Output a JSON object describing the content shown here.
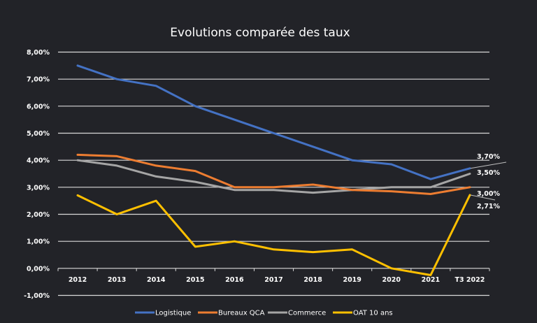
{
  "chart_data": {
    "type": "line",
    "title": "Evolutions comparée des taux",
    "xlabel": "",
    "ylabel": "",
    "categories": [
      "2012",
      "2013",
      "2014",
      "2015",
      "2016",
      "2017",
      "2018",
      "2019",
      "2020",
      "2021",
      "T3 2022"
    ],
    "ylim": [
      -0.01,
      0.08
    ],
    "yticks": [
      {
        "value": 0.08,
        "label": "8,00%"
      },
      {
        "value": 0.07,
        "label": "7,00%"
      },
      {
        "value": 0.06,
        "label": "6,00%"
      },
      {
        "value": 0.05,
        "label": "5,00%"
      },
      {
        "value": 0.04,
        "label": "4,00%"
      },
      {
        "value": 0.03,
        "label": "3,00%"
      },
      {
        "value": 0.02,
        "label": "2,00%"
      },
      {
        "value": 0.01,
        "label": "1,00%"
      },
      {
        "value": 0.0,
        "label": "0,00%"
      },
      {
        "value": -0.01,
        "label": "-1,00%"
      }
    ],
    "grid": true,
    "legend": "bottom",
    "series": [
      {
        "name": "Logistique",
        "color": "#4472C4",
        "values": [
          0.075,
          0.07,
          0.0675,
          0.06,
          0.055,
          0.05,
          0.045,
          0.04,
          0.0385,
          0.033,
          0.037
        ],
        "end_label": "3,70%"
      },
      {
        "name": "Bureaux QCA",
        "color": "#ED7D31",
        "values": [
          0.042,
          0.0415,
          0.038,
          0.036,
          0.03,
          0.03,
          0.031,
          0.029,
          0.0285,
          0.0275,
          0.03
        ],
        "end_label": "3,00%"
      },
      {
        "name": "Commerce",
        "color": "#A5A5A5",
        "values": [
          0.04,
          0.038,
          0.034,
          0.032,
          0.029,
          0.029,
          0.028,
          0.029,
          0.03,
          0.03,
          0.035
        ],
        "end_label": "3,50%"
      },
      {
        "name": "OAT 10 ans",
        "color": "#FFC000",
        "values": [
          0.027,
          0.02,
          0.025,
          0.008,
          0.01,
          0.007,
          0.006,
          0.007,
          0.0,
          -0.0025,
          0.0271
        ],
        "end_label": "2,71%"
      }
    ]
  },
  "legend_items": [
    "Logistique",
    "Bureaux QCA",
    "Commerce",
    "OAT 10 ans"
  ]
}
